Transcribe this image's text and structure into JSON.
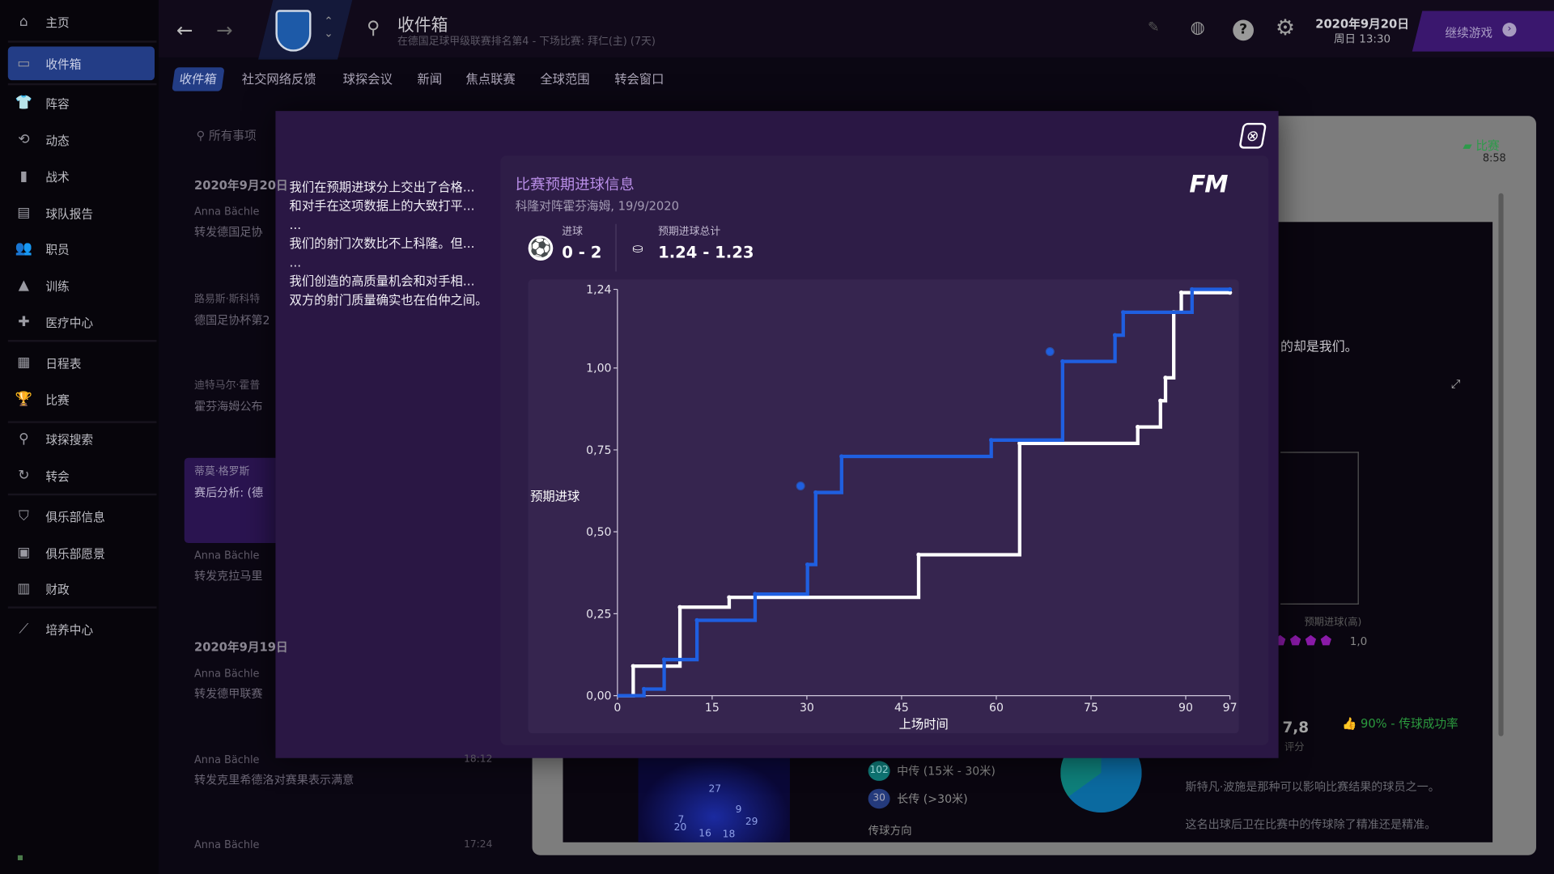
{
  "sidebar": {
    "items": [
      {
        "label": "主页",
        "icon": "home-icon",
        "glyph": "⌂"
      },
      {
        "label": "收件箱",
        "icon": "inbox-icon",
        "glyph": "▭",
        "selected": true
      },
      {
        "label": "阵容",
        "icon": "jersey-icon",
        "glyph": "👕"
      },
      {
        "label": "动态",
        "icon": "dynamics-icon",
        "glyph": "⟲"
      },
      {
        "label": "战术",
        "icon": "tactics-icon",
        "glyph": "▮"
      },
      {
        "label": "球队报告",
        "icon": "report-icon",
        "glyph": "▤"
      },
      {
        "label": "职员",
        "icon": "staff-icon",
        "glyph": "👥"
      },
      {
        "label": "训练",
        "icon": "training-icon",
        "glyph": "▲"
      },
      {
        "label": "医疗中心",
        "icon": "medical-icon",
        "glyph": "✚"
      },
      {
        "label": "日程表",
        "icon": "calendar-icon",
        "glyph": "▦"
      },
      {
        "label": "比赛",
        "icon": "trophy-icon",
        "glyph": "🏆"
      },
      {
        "label": "球探搜索",
        "icon": "search-icon",
        "glyph": "⚲"
      },
      {
        "label": "转会",
        "icon": "transfer-icon",
        "glyph": "↻"
      },
      {
        "label": "俱乐部信息",
        "icon": "shield-icon",
        "glyph": "⛉"
      },
      {
        "label": "俱乐部愿景",
        "icon": "briefcase-icon",
        "glyph": "▣"
      },
      {
        "label": "财政",
        "icon": "money-icon",
        "glyph": "▥"
      },
      {
        "label": "培养中心",
        "icon": "development-icon",
        "glyph": "⟋"
      }
    ]
  },
  "header": {
    "title": "收件箱",
    "subtitle": "在德国足球甲级联赛排名第4 - 下场比赛: 拜仁(主) (7天)",
    "date": "2020年9月20日",
    "time": "周日 13:30",
    "continue_label": "继续游戏"
  },
  "tabs": [
    "收件箱",
    "社交网络反馈",
    "球探会议",
    "新闻",
    "焦点联赛",
    "全球范围",
    "转会窗口"
  ],
  "inbox": {
    "search_placeholder": "所有事项",
    "items": [
      {
        "date": "2020年9月20日"
      },
      {
        "from": "Anna Bächle",
        "subject": "转发德国足协"
      },
      {
        "from": "路易斯·斯科特",
        "subject": "德国足协杯第2"
      },
      {
        "from": "迪特马尔·霍普",
        "subject": "霍芬海姆公布"
      },
      {
        "from": "蒂莫·格罗斯",
        "subject": "赛后分析: (德"
      },
      {
        "from": "Anna Bächle",
        "subject": "转发克拉马里"
      },
      {
        "date": "2020年9月19日"
      },
      {
        "from": "Anna Bächle",
        "subject": "转发德甲联赛"
      },
      {
        "from": "Anna Bächle",
        "subject": "转发克里希德洛对赛果表示满意",
        "time": "18:12"
      },
      {
        "from": "Anna Bächle",
        "time": "17:24"
      }
    ]
  },
  "background_panel": {
    "tag": "比赛",
    "tag_time": "8:58",
    "text1": "的却是我们。",
    "xg_label": "预期进球(高)",
    "xg_value": "1,0",
    "rating": "7,8",
    "rating_label": "评分",
    "pass_rate": "90% - 传球成功率",
    "mid_pass_count": "102",
    "mid_pass": "中传 (15米 - 30米)",
    "long_pass_count": "30",
    "long_pass": "长传 (>30米)",
    "pass_direction": "传球方向",
    "player_text1": "斯特凡·波施是那种可以影响比赛结果的球员之一。",
    "player_text2": "这名出球后卫在比赛中的传球除了精准还是精准。",
    "heatmap_numbers": [
      "27",
      "9",
      "7",
      "29",
      "20",
      "16",
      "18"
    ]
  },
  "modal": {
    "summary": [
      "我们在预期进球分上交出了合格...",
      "和对手在这项数据上的大致打平...",
      "...",
      "我们的射门次数比不上科隆。但...",
      "...",
      "我们创造的高质量机会和对手相...",
      "双方的射门质量确实也在伯仲之间。"
    ],
    "title": "比赛预期进球信息",
    "subtitle": "科隆对阵霍芬海姆, 19/9/2020",
    "goals_label": "进球",
    "goals_value": "0 - 2",
    "xg_total_label": "预期进球总计",
    "xg_total_value": "1.24 - 1.23",
    "logo": "FM"
  },
  "chart_data": {
    "type": "line",
    "step": true,
    "xlabel": "上场时间",
    "ylabel": "预期进球",
    "xlim": [
      0,
      97
    ],
    "ylim": [
      0,
      1.24
    ],
    "xticks": [
      "0",
      "15",
      "30",
      "45",
      "60",
      "75",
      "90",
      "97"
    ],
    "xtick_values": [
      0,
      15,
      30,
      45,
      60,
      75,
      90,
      97
    ],
    "yticks": [
      "0,00",
      "0,25",
      "0,50",
      "0,75",
      "1,00",
      "1,24"
    ],
    "ytick_values": [
      0,
      0.25,
      0.5,
      0.75,
      1.0,
      1.24
    ],
    "series": [
      {
        "color": "#1f5fe0",
        "points": [
          [
            0,
            0
          ],
          [
            4.2,
            0.02
          ],
          [
            7.4,
            0.11
          ],
          [
            12.6,
            0.23
          ],
          [
            21.8,
            0.31
          ],
          [
            30.1,
            0.4
          ],
          [
            31.4,
            0.62
          ],
          [
            35.5,
            0.73
          ],
          [
            59.2,
            0.78
          ],
          [
            70.5,
            1.02
          ],
          [
            78.8,
            1.1
          ],
          [
            80.1,
            1.17
          ],
          [
            91,
            1.24
          ],
          [
            97,
            1.24
          ]
        ],
        "goals": [
          [
            29,
            0.64
          ],
          [
            68.5,
            1.05
          ]
        ]
      },
      {
        "color": "#ffffff",
        "points": [
          [
            0,
            0
          ],
          [
            2.5,
            0.09
          ],
          [
            9.9,
            0.27
          ],
          [
            17.7,
            0.3
          ],
          [
            47.7,
            0.43
          ],
          [
            63.7,
            0.77
          ],
          [
            82.4,
            0.82
          ],
          [
            86,
            0.9
          ],
          [
            86.8,
            0.97
          ],
          [
            88.1,
            1.17
          ],
          [
            89.3,
            1.23
          ],
          [
            97,
            1.23
          ]
        ]
      }
    ]
  }
}
